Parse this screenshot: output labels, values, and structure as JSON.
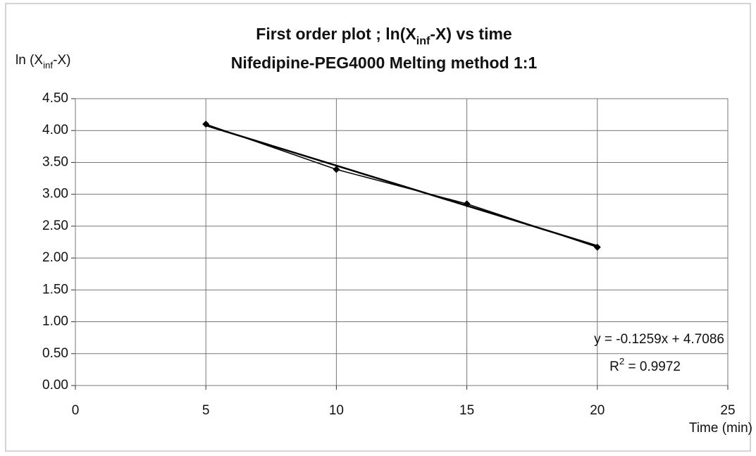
{
  "chart_data": {
    "type": "scatter",
    "title": [
      "First order plot ; ln(X",
      "inf",
      "-X) vs time"
    ],
    "subtitle": "Nifedipine-PEG4000 Melting method 1:1",
    "y_label": [
      "ln (X",
      "inf",
      "-X)"
    ],
    "x_label": "Time (min)",
    "series": [
      {
        "color": "#000000",
        "x": [
          5,
          10,
          15,
          20
        ],
        "values": [
          4.1,
          3.39,
          2.85,
          2.17
        ],
        "marker": "diamond"
      },
      {
        "color": "#000000",
        "x": [
          5,
          20
        ],
        "values": [
          4.08,
          2.19
        ]
      }
    ],
    "annotations": [
      {
        "text": [
          "y = -0.1259x + 4.7086"
        ]
      },
      {
        "text": [
          "R",
          "2",
          " = 0.9972"
        ]
      }
    ],
    "xlim": [
      0,
      25
    ],
    "xticks": [
      0,
      5,
      10,
      15,
      20,
      25
    ],
    "ylim": [
      0,
      4.5
    ],
    "yticks": [
      {
        "value": 0,
        "label": "0.00"
      },
      {
        "value": 0.5,
        "label": "0.50"
      },
      {
        "value": 1,
        "label": "1.00"
      },
      {
        "value": 1.5,
        "label": "1.50"
      },
      {
        "value": 2,
        "label": "2.00"
      },
      {
        "value": 2.5,
        "label": "2.50"
      },
      {
        "value": 3,
        "label": "3.00"
      },
      {
        "value": 3.5,
        "label": "3.50"
      },
      {
        "value": 4,
        "label": "4.00"
      },
      {
        "value": 4.5,
        "label": "4.50"
      }
    ],
    "grid": true
  }
}
